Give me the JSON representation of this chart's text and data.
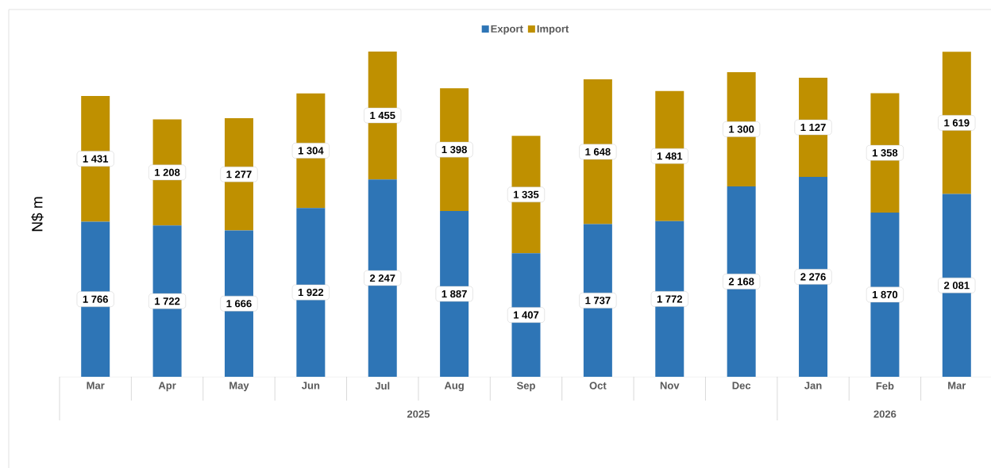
{
  "chart_data": {
    "type": "bar",
    "stacked": true,
    "ylabel": "N$ m",
    "legend": "top",
    "categories": [
      "Mar",
      "Apr",
      "May",
      "Jun",
      "Jul",
      "Aug",
      "Sep",
      "Oct",
      "Nov",
      "Dec",
      "Jan",
      "Feb",
      "Mar"
    ],
    "series": [
      {
        "name": "Export",
        "color": "#2e75b6",
        "values": [
          1766,
          1722,
          1666,
          1922,
          2247,
          1887,
          1407,
          1737,
          1772,
          2168,
          2276,
          1870,
          2081
        ],
        "value_labels": [
          "1 766",
          "1 722",
          "1 666",
          "1 922",
          "2 247",
          "1 887",
          "1 407",
          "1 737",
          "1 772",
          "2 168",
          "2 276",
          "1 870",
          "2 081"
        ]
      },
      {
        "name": "Import",
        "color": "#bf9000",
        "values": [
          1431,
          1208,
          1277,
          1304,
          1455,
          1398,
          1335,
          1648,
          1481,
          1300,
          1127,
          1358,
          1619
        ],
        "value_labels": [
          "1 431",
          "1 208",
          "1 277",
          "1 304",
          "1 455",
          "1 398",
          "1 335",
          "1 648",
          "1 481",
          "1 300",
          "1 127",
          "1 358",
          "1 619"
        ]
      }
    ],
    "annotations": [
      "2025",
      "2026"
    ]
  }
}
